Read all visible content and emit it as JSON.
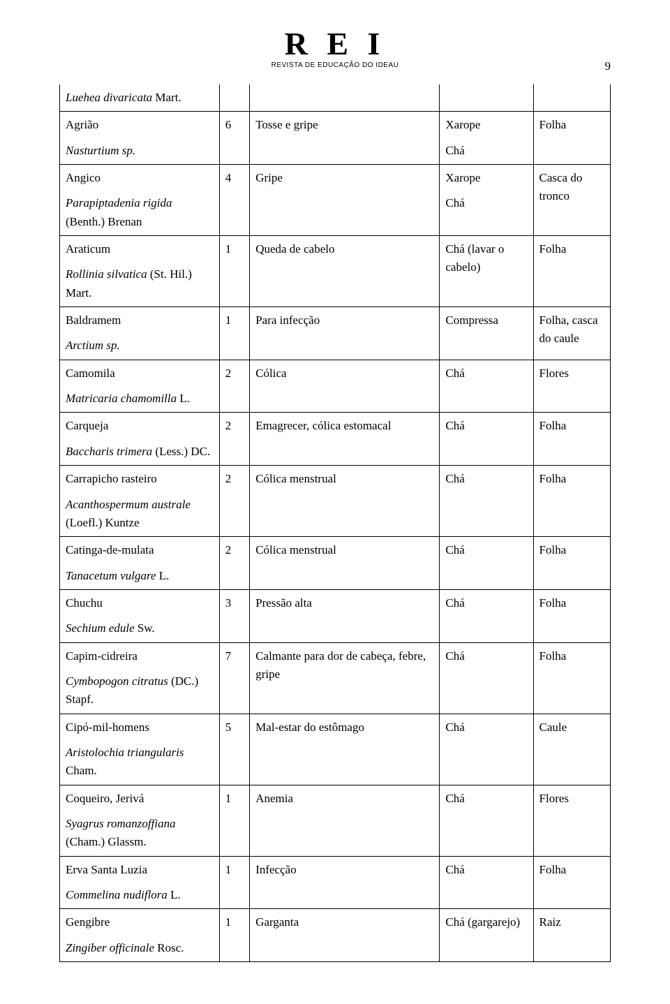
{
  "header": {
    "logo_main": "R E I",
    "logo_sub": "REVISTA DE EDUCAÇÃO DO IDEAU",
    "page_number": "9"
  },
  "rows": [
    {
      "continuation": true,
      "name_lines": [
        "Luehea divaricata",
        " Mart."
      ],
      "name_is_sci_only": true,
      "n": "",
      "indication": "",
      "prep": "",
      "part": ""
    },
    {
      "common": "Agrião",
      "sci_italic": "Nasturtium sp.",
      "sci_roman": "",
      "n": "6",
      "indication": "Tosse e gripe",
      "prep_lines": [
        "Xarope",
        "Chá"
      ],
      "part": "Folha"
    },
    {
      "common": "Angico",
      "sci_italic": "Parapiptadenia rigida",
      "sci_roman": " (Benth.) Brenan",
      "n": "4",
      "indication": "Gripe",
      "prep_lines": [
        "Xarope",
        "Chá"
      ],
      "part": "Casca do tronco"
    },
    {
      "common": "Araticum",
      "sci_italic": "Rollinia silvatica",
      "sci_roman": " (St. Hil.) Mart.",
      "n": "1",
      "indication": "Queda de cabelo",
      "prep_lines": [
        "Chá (lavar o cabelo)"
      ],
      "part": "Folha"
    },
    {
      "common": "Baldramem",
      "sci_italic": "Arctium sp.",
      "sci_roman": "",
      "n": "1",
      "indication": "Para infecção",
      "prep_lines": [
        "Compressa"
      ],
      "part": "Folha, casca do caule"
    },
    {
      "common": "Camomila",
      "sci_italic": "Matricaria chamomilla",
      "sci_roman": " L.",
      "n": "2",
      "indication": "Cólica",
      "prep_lines": [
        "Chá"
      ],
      "part": "Flores"
    },
    {
      "common": "Carqueja",
      "sci_italic": "Baccharis trimera",
      "sci_roman": " (Less.) DC.",
      "n": "2",
      "indication": "Emagrecer, cólica estomacal",
      "prep_lines": [
        "Chá"
      ],
      "part": "Folha"
    },
    {
      "common": "Carrapicho rasteiro",
      "sci_italic": "Acanthospermum australe",
      "sci_roman": " (Loefl.) Kuntze",
      "n": "2",
      "indication": "Cólica menstrual",
      "prep_lines": [
        "Chá"
      ],
      "part": "Folha"
    },
    {
      "common": "Catinga-de-mulata",
      "sci_italic": "Tanacetum vulgare",
      "sci_roman": " L.",
      "n": "2",
      "indication": "Cólica menstrual",
      "prep_lines": [
        "Chá"
      ],
      "part": "Folha"
    },
    {
      "common": "Chuchu",
      "sci_italic": "Sechium edule",
      "sci_roman": " Sw.",
      "n": "3",
      "indication": "Pressão alta",
      "prep_lines": [
        "Chá"
      ],
      "part": "Folha"
    },
    {
      "common": "Capim-cidreira",
      "sci_italic": "Cymbopogon citratus",
      "sci_roman": " (DC.) Stapf.",
      "n": "7",
      "indication": "Calmante para dor de cabeça, febre, gripe",
      "prep_lines": [
        "Chá"
      ],
      "part": "Folha"
    },
    {
      "common": "Cipó-mil-homens",
      "sci_italic": "Aristolochia triangularis",
      "sci_roman": " Cham.",
      "n": "5",
      "indication": "Mal-estar do estômago",
      "prep_lines": [
        "Chá"
      ],
      "part": "Caule"
    },
    {
      "common": "Coqueiro, Jerivá",
      "sci_italic": "Syagrus romanzoffiana",
      "sci_roman": " (Cham.) Glassm.",
      "n": "1",
      "indication": "Anemia",
      "prep_lines": [
        "Chá"
      ],
      "part": "Flores"
    },
    {
      "common": "Erva Santa Luzia",
      "sci_italic": "Commelina nudiflora",
      "sci_roman": " L.",
      "n": "1",
      "indication": "Infecção",
      "prep_lines": [
        "Chá"
      ],
      "part": "Folha"
    },
    {
      "common": "Gengibre",
      "sci_italic": "Zingiber officinale",
      "sci_roman": " Rosc.",
      "n": "1",
      "indication": "Garganta",
      "prep_lines": [
        "Chá (gargarejo)"
      ],
      "part": "Raiz"
    }
  ]
}
